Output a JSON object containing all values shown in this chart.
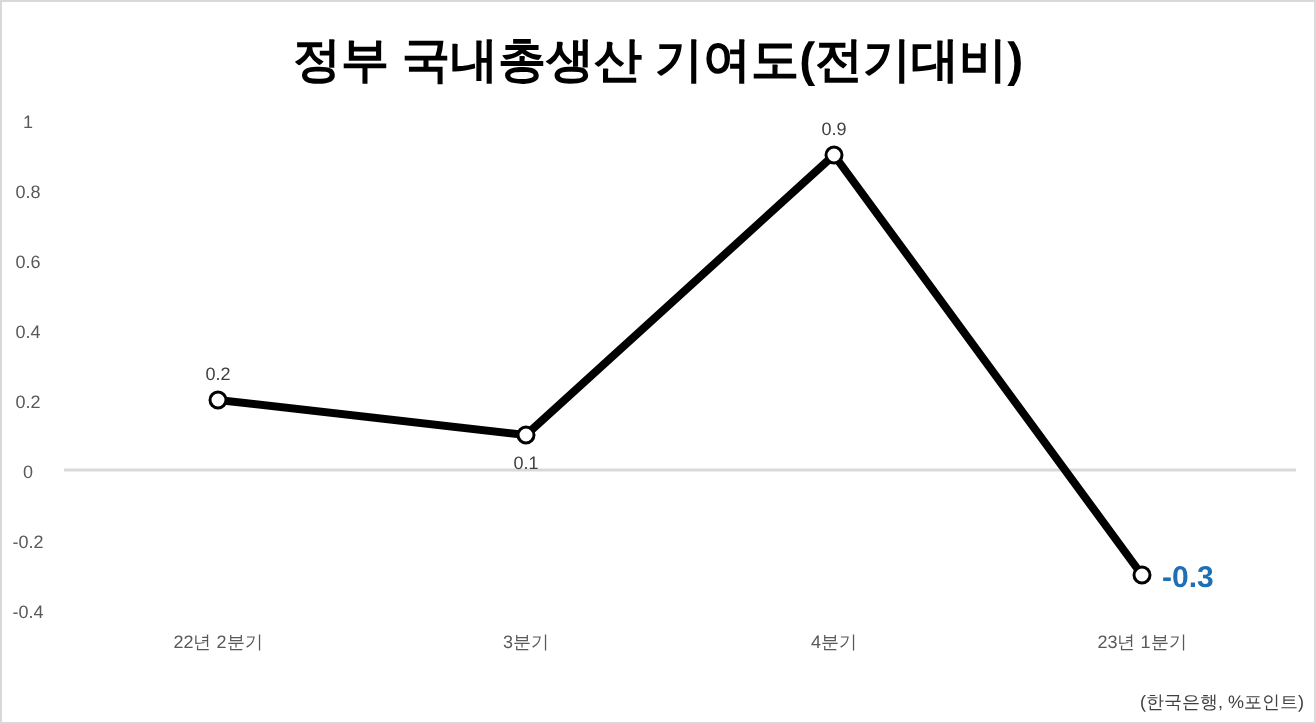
{
  "chart_data": {
    "type": "line",
    "title": "정부 국내총생산 기여도(전기대비)",
    "categories": [
      "22년 2분기",
      "3분기",
      "4분기",
      "23년 1분기"
    ],
    "series": [
      {
        "color": "#000000",
        "values": [
          0.2,
          0.1,
          0.9,
          -0.3
        ]
      }
    ],
    "ylim": [
      -0.4,
      1
    ],
    "yticks": [
      {
        "value": -0.4,
        "label": "-0.4"
      },
      {
        "value": -0.2,
        "label": "-0.2"
      },
      0,
      0.2,
      0.4,
      0.6,
      0.8,
      1
    ],
    "ref_lines": [
      {
        "axis": "y",
        "value": 0,
        "color": "#d9d9d9"
      }
    ],
    "marker": "circle",
    "line_style": "solid",
    "data_labels": true,
    "annotations": [
      "(한국은행, %포인트)"
    ]
  }
}
